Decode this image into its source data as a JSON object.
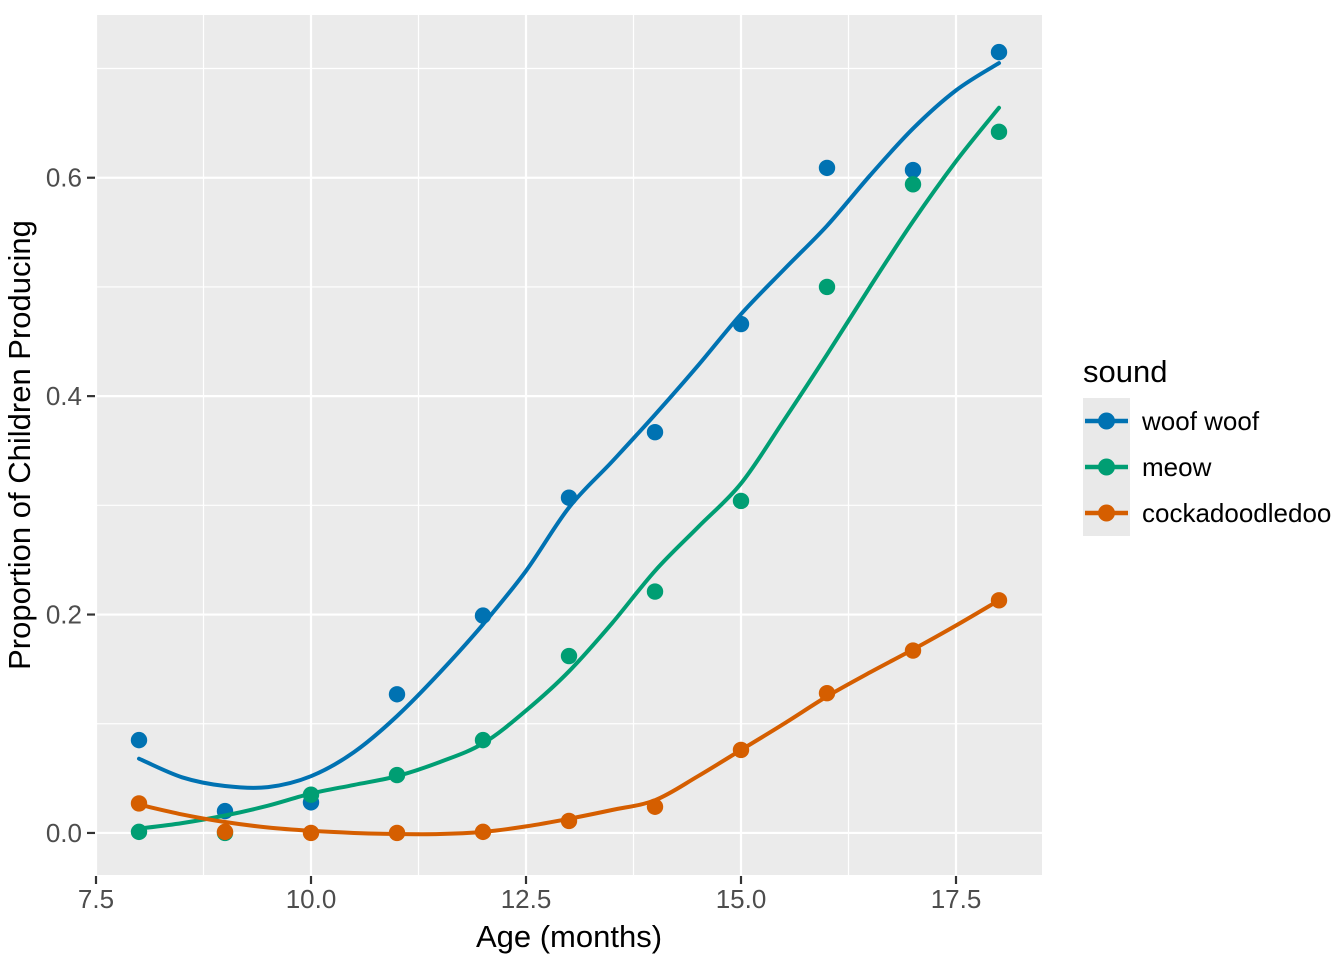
{
  "chart_data": {
    "type": "scatter",
    "title": "",
    "xlabel": "Age (months)",
    "ylabel": "Proportion of Children Producing",
    "xlim": [
      7.5,
      18.5
    ],
    "ylim": [
      -0.0385,
      0.749
    ],
    "x_major_ticks": [
      7.5,
      10.0,
      12.5,
      15.0,
      17.5
    ],
    "x_tick_labels": [
      "7.5",
      "10.0",
      "12.5",
      "15.0",
      "17.5"
    ],
    "x_minor_ticks": [
      8.75,
      11.25,
      13.75,
      16.25
    ],
    "y_major_ticks": [
      0.0,
      0.2,
      0.4,
      0.6
    ],
    "y_tick_labels": [
      "0.0",
      "0.2",
      "0.4",
      "0.6"
    ],
    "y_minor_ticks": [
      0.1,
      0.3,
      0.5,
      0.7
    ],
    "grid": true,
    "panel_background": "#EBEBEB",
    "grid_color": "#FFFFFF",
    "tick_mark_color": "#333333",
    "tick_label_color": "#4D4D4D",
    "legend": {
      "title": "sound",
      "position": "right",
      "key_background": "#E9E9E9",
      "entries": [
        {
          "label": "woof woof",
          "color": "#0072B2"
        },
        {
          "label": "meow",
          "color": "#009E73"
        },
        {
          "label": "cockadoodledoo",
          "color": "#D55E00"
        }
      ]
    },
    "series": [
      {
        "name": "woof woof",
        "color": "#0072B2",
        "points": [
          [
            8,
            0.085
          ],
          [
            9,
            0.02
          ],
          [
            10,
            0.028
          ],
          [
            11,
            0.127
          ],
          [
            12,
            0.199
          ],
          [
            13,
            0.307
          ],
          [
            14,
            0.367
          ],
          [
            15,
            0.466
          ],
          [
            16,
            0.609
          ],
          [
            17,
            0.607
          ],
          [
            18,
            0.715
          ]
        ],
        "smooth": [
          [
            8,
            0.068
          ],
          [
            8.5,
            0.051
          ],
          [
            9,
            0.043
          ],
          [
            9.5,
            0.042
          ],
          [
            10,
            0.052
          ],
          [
            10.5,
            0.074
          ],
          [
            11,
            0.107
          ],
          [
            11.5,
            0.147
          ],
          [
            12,
            0.191
          ],
          [
            12.5,
            0.24
          ],
          [
            13,
            0.298
          ],
          [
            13.5,
            0.34
          ],
          [
            14,
            0.383
          ],
          [
            14.5,
            0.428
          ],
          [
            15,
            0.475
          ],
          [
            15.5,
            0.516
          ],
          [
            16,
            0.556
          ],
          [
            16.5,
            0.602
          ],
          [
            17,
            0.645
          ],
          [
            17.5,
            0.68
          ],
          [
            18,
            0.705
          ]
        ]
      },
      {
        "name": "meow",
        "color": "#009E73",
        "points": [
          [
            8,
            0.001
          ],
          [
            9,
            0.0
          ],
          [
            10,
            0.035
          ],
          [
            11,
            0.053
          ],
          [
            12,
            0.085
          ],
          [
            13,
            0.162
          ],
          [
            14,
            0.221
          ],
          [
            15,
            0.304
          ],
          [
            16,
            0.5
          ],
          [
            17,
            0.594
          ],
          [
            18,
            0.642
          ]
        ],
        "smooth": [
          [
            8,
            0.004
          ],
          [
            8.5,
            0.009
          ],
          [
            9,
            0.016
          ],
          [
            9.5,
            0.025
          ],
          [
            10,
            0.036
          ],
          [
            10.5,
            0.044
          ],
          [
            11,
            0.052
          ],
          [
            11.5,
            0.065
          ],
          [
            12,
            0.082
          ],
          [
            12.5,
            0.112
          ],
          [
            13,
            0.148
          ],
          [
            13.5,
            0.192
          ],
          [
            14,
            0.24
          ],
          [
            14.5,
            0.28
          ],
          [
            15,
            0.32
          ],
          [
            15.5,
            0.378
          ],
          [
            16,
            0.438
          ],
          [
            16.5,
            0.5
          ],
          [
            17,
            0.56
          ],
          [
            17.5,
            0.615
          ],
          [
            18,
            0.664
          ]
        ]
      },
      {
        "name": "cockadoodledoo",
        "color": "#D55E00",
        "points": [
          [
            8,
            0.027
          ],
          [
            9,
            0.001
          ],
          [
            10,
            0.0
          ],
          [
            11,
            0.0
          ],
          [
            12,
            0.001
          ],
          [
            13,
            0.011
          ],
          [
            14,
            0.024
          ],
          [
            15,
            0.076
          ],
          [
            16,
            0.128
          ],
          [
            17,
            0.167
          ],
          [
            18,
            0.213
          ]
        ],
        "smooth": [
          [
            8,
            0.026
          ],
          [
            8.5,
            0.017
          ],
          [
            9,
            0.01
          ],
          [
            9.5,
            0.005
          ],
          [
            10,
            0.002
          ],
          [
            10.5,
            0.0
          ],
          [
            11,
            -0.001
          ],
          [
            11.5,
            -0.001
          ],
          [
            12,
            0.001
          ],
          [
            12.5,
            0.006
          ],
          [
            13,
            0.013
          ],
          [
            13.5,
            0.021
          ],
          [
            14,
            0.03
          ],
          [
            14.5,
            0.052
          ],
          [
            15,
            0.076
          ],
          [
            15.5,
            0.1
          ],
          [
            16,
            0.125
          ],
          [
            16.5,
            0.147
          ],
          [
            17,
            0.168
          ],
          [
            17.5,
            0.19
          ],
          [
            18,
            0.213
          ]
        ]
      }
    ]
  }
}
